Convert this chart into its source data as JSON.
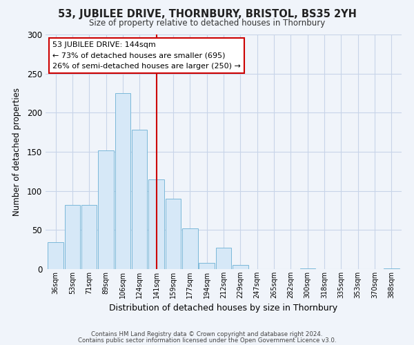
{
  "title": "53, JUBILEE DRIVE, THORNBURY, BRISTOL, BS35 2YH",
  "subtitle": "Size of property relative to detached houses in Thornbury",
  "xlabel": "Distribution of detached houses by size in Thornbury",
  "ylabel": "Number of detached properties",
  "footer_lines": [
    "Contains HM Land Registry data © Crown copyright and database right 2024.",
    "Contains public sector information licensed under the Open Government Licence v3.0."
  ],
  "bar_labels": [
    "36sqm",
    "53sqm",
    "71sqm",
    "89sqm",
    "106sqm",
    "124sqm",
    "141sqm",
    "159sqm",
    "177sqm",
    "194sqm",
    "212sqm",
    "229sqm",
    "247sqm",
    "265sqm",
    "282sqm",
    "300sqm",
    "318sqm",
    "335sqm",
    "353sqm",
    "370sqm",
    "388sqm"
  ],
  "bar_values": [
    34,
    82,
    82,
    152,
    225,
    178,
    115,
    90,
    52,
    8,
    27,
    5,
    0,
    0,
    0,
    1,
    0,
    0,
    0,
    0,
    1
  ],
  "bar_color": "#d6e8f7",
  "bar_edge_color": "#7ab8d9",
  "annotation_box_text": "53 JUBILEE DRIVE: 144sqm\n← 73% of detached houses are smaller (695)\n26% of semi-detached houses are larger (250) →",
  "vline_x_index": 6,
  "vline_color": "#cc0000",
  "ylim": [
    0,
    300
  ],
  "yticks": [
    0,
    50,
    100,
    150,
    200,
    250,
    300
  ],
  "background_color": "#f0f4fa",
  "grid_color": "#c8d4e8"
}
